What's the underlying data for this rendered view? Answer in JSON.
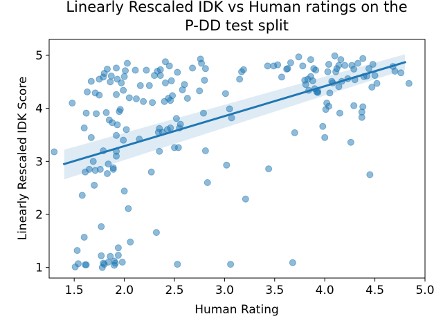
{
  "chart_data": {
    "type": "scatter",
    "title_line1": "Linearly Rescaled IDK vs Human ratings on the",
    "title_line2": "P-DD test split",
    "xlabel": "Human Rating",
    "ylabel": "Linearly Rescaled IDK Score",
    "xlim": [
      1.25,
      5.0
    ],
    "ylim": [
      0.8,
      5.3
    ],
    "xticks": [
      "1.5",
      "2.0",
      "2.5",
      "3.0",
      "3.5",
      "4.0",
      "4.5",
      "5.0"
    ],
    "xtick_values": [
      1.5,
      2.0,
      2.5,
      3.0,
      3.5,
      4.0,
      4.5,
      5.0
    ],
    "yticks": [
      "1",
      "2",
      "3",
      "4",
      "5"
    ],
    "ytick_values": [
      1,
      2,
      3,
      4,
      5
    ],
    "grid": false,
    "point_color": "#1f77b4",
    "regression": {
      "x_range": [
        1.4,
        4.8
      ],
      "y_range": [
        2.95,
        4.87
      ],
      "ci_lower": [
        2.66,
        4.73
      ],
      "ci_upper": [
        3.22,
        5.02
      ]
    },
    "points": [
      [
        1.3,
        3.18
      ],
      [
        1.48,
        4.1
      ],
      [
        1.51,
        1.01
      ],
      [
        1.53,
        1.32
      ],
      [
        1.54,
        1.07
      ],
      [
        1.58,
        2.36
      ],
      [
        1.6,
        3.63
      ],
      [
        1.6,
        1.57
      ],
      [
        1.61,
        1.05
      ],
      [
        1.62,
        1.05
      ],
      [
        1.61,
        2.8
      ],
      [
        1.62,
        3.91
      ],
      [
        1.63,
        4.31
      ],
      [
        1.65,
        2.85
      ],
      [
        1.67,
        3.45
      ],
      [
        1.67,
        4.51
      ],
      [
        1.69,
        3.0
      ],
      [
        1.7,
        2.55
      ],
      [
        1.71,
        2.83
      ],
      [
        1.71,
        4.29
      ],
      [
        1.72,
        3.9
      ],
      [
        1.75,
        4.25
      ],
      [
        1.75,
        4.55
      ],
      [
        1.76,
        2.85
      ],
      [
        1.77,
        1.77
      ],
      [
        1.77,
        1.22
      ],
      [
        1.78,
        1.0
      ],
      [
        1.79,
        1.08
      ],
      [
        1.79,
        3.2
      ],
      [
        1.79,
        4.59
      ],
      [
        1.8,
        1.06
      ],
      [
        1.8,
        4.66
      ],
      [
        1.82,
        3.92
      ],
      [
        1.83,
        4.74
      ],
      [
        1.83,
        2.77
      ],
      [
        1.84,
        2.95
      ],
      [
        1.84,
        1.1
      ],
      [
        1.85,
        3.78
      ],
      [
        1.86,
        4.5
      ],
      [
        1.86,
        1.21
      ],
      [
        1.87,
        4.61
      ],
      [
        1.88,
        3.73
      ],
      [
        1.89,
        2.85
      ],
      [
        1.89,
        2.88
      ],
      [
        1.9,
        1.04
      ],
      [
        1.9,
        1.12
      ],
      [
        1.91,
        1.08
      ],
      [
        1.92,
        3.1
      ],
      [
        1.92,
        3.19
      ],
      [
        1.92,
        4.26
      ],
      [
        1.92,
        4.76
      ],
      [
        1.92,
        3.49
      ],
      [
        1.93,
        3.69
      ],
      [
        1.93,
        4.55
      ],
      [
        1.94,
        1.23
      ],
      [
        1.94,
        1.37
      ],
      [
        1.95,
        3.94
      ],
      [
        1.96,
        3.98
      ],
      [
        1.97,
        4.48
      ],
      [
        1.98,
        1.1
      ],
      [
        1.99,
        3.4
      ],
      [
        1.99,
        4.34
      ],
      [
        2.0,
        4.6
      ],
      [
        2.0,
        2.44
      ],
      [
        2.01,
        4.71
      ],
      [
        2.02,
        3.6
      ],
      [
        2.03,
        4.85
      ],
      [
        2.04,
        2.11
      ],
      [
        2.05,
        4.2
      ],
      [
        2.06,
        1.48
      ],
      [
        2.11,
        4.72
      ],
      [
        2.12,
        4.18
      ],
      [
        2.15,
        3.42
      ],
      [
        2.16,
        4.43
      ],
      [
        2.19,
        4.13
      ],
      [
        2.22,
        4.72
      ],
      [
        2.25,
        4.43
      ],
      [
        2.27,
        2.8
      ],
      [
        2.28,
        4.11
      ],
      [
        2.3,
        4.62
      ],
      [
        2.32,
        1.66
      ],
      [
        2.33,
        4.7
      ],
      [
        2.34,
        3.55
      ],
      [
        2.35,
        3.19
      ],
      [
        2.35,
        3.62
      ],
      [
        2.36,
        4.62
      ],
      [
        2.36,
        4.73
      ],
      [
        2.38,
        3.55
      ],
      [
        2.4,
        4.13
      ],
      [
        2.41,
        4.48
      ],
      [
        2.41,
        4.88
      ],
      [
        2.43,
        3.6
      ],
      [
        2.44,
        4.19
      ],
      [
        2.45,
        4.8
      ],
      [
        2.46,
        3.63
      ],
      [
        2.46,
        4.15
      ],
      [
        2.47,
        4.52
      ],
      [
        2.48,
        4.24
      ],
      [
        2.5,
        3.26
      ],
      [
        2.52,
        3.81
      ],
      [
        2.53,
        4.68
      ],
      [
        2.53,
        1.06
      ],
      [
        2.54,
        3.26
      ],
      [
        2.55,
        3.63
      ],
      [
        2.56,
        3.7
      ],
      [
        2.58,
        4.35
      ],
      [
        2.6,
        4.45
      ],
      [
        2.63,
        4.19
      ],
      [
        2.68,
        4.76
      ],
      [
        2.75,
        4.33
      ],
      [
        2.76,
        4.93
      ],
      [
        2.77,
        4.85
      ],
      [
        2.79,
        3.91
      ],
      [
        2.8,
        4.53
      ],
      [
        2.81,
        4.75
      ],
      [
        2.81,
        3.2
      ],
      [
        2.83,
        2.6
      ],
      [
        3.01,
        4.28
      ],
      [
        3.02,
        2.93
      ],
      [
        3.05,
        3.99
      ],
      [
        3.06,
        1.06
      ],
      [
        3.07,
        3.82
      ],
      [
        3.15,
        4.55
      ],
      [
        3.17,
        4.69
      ],
      [
        3.19,
        4.73
      ],
      [
        3.21,
        2.29
      ],
      [
        3.43,
        4.8
      ],
      [
        3.44,
        2.86
      ],
      [
        3.49,
        4.8
      ],
      [
        3.53,
        4.82
      ],
      [
        3.57,
        4.59
      ],
      [
        3.62,
        4.74
      ],
      [
        3.63,
        4.75
      ],
      [
        3.66,
        4.86
      ],
      [
        3.68,
        1.09
      ],
      [
        3.7,
        3.54
      ],
      [
        3.74,
        4.97
      ],
      [
        3.78,
        4.8
      ],
      [
        3.8,
        4.53
      ],
      [
        3.81,
        4.45
      ],
      [
        3.83,
        4.55
      ],
      [
        3.84,
        4.34
      ],
      [
        3.86,
        4.92
      ],
      [
        3.86,
        4.6
      ],
      [
        3.88,
        4.52
      ],
      [
        3.89,
        4.75
      ],
      [
        3.9,
        4.37
      ],
      [
        3.91,
        4.72
      ],
      [
        3.92,
        4.31
      ],
      [
        3.93,
        4.3
      ],
      [
        3.93,
        4.32
      ],
      [
        3.98,
        3.66
      ],
      [
        4.0,
        3.45
      ],
      [
        4.01,
        3.98
      ],
      [
        4.02,
        4.1
      ],
      [
        4.03,
        4.69
      ],
      [
        4.04,
        4.04
      ],
      [
        4.04,
        4.83
      ],
      [
        4.05,
        4.29
      ],
      [
        4.07,
        4.51
      ],
      [
        4.08,
        4.48
      ],
      [
        4.1,
        4.99
      ],
      [
        4.11,
        4.69
      ],
      [
        4.12,
        4.75
      ],
      [
        4.14,
        4.41
      ],
      [
        4.14,
        4.81
      ],
      [
        4.15,
        3.91
      ],
      [
        4.16,
        4.92
      ],
      [
        4.17,
        4.51
      ],
      [
        4.2,
        4.81
      ],
      [
        4.23,
        4.56
      ],
      [
        4.26,
        3.36
      ],
      [
        4.27,
        4.81
      ],
      [
        4.29,
        4.74
      ],
      [
        4.29,
        4.05
      ],
      [
        4.3,
        4.54
      ],
      [
        4.33,
        4.85
      ],
      [
        4.37,
        3.93
      ],
      [
        4.37,
        3.83
      ],
      [
        4.38,
        4.03
      ],
      [
        4.38,
        4.94
      ],
      [
        4.39,
        4.6
      ],
      [
        4.42,
        4.61
      ],
      [
        4.44,
        4.75
      ],
      [
        4.45,
        2.75
      ],
      [
        4.47,
        4.4
      ],
      [
        4.48,
        4.83
      ],
      [
        4.5,
        4.62
      ],
      [
        4.52,
        4.47
      ],
      [
        4.68,
        4.79
      ],
      [
        4.7,
        4.7
      ],
      [
        4.76,
        4.67
      ],
      [
        4.84,
        4.47
      ]
    ]
  }
}
